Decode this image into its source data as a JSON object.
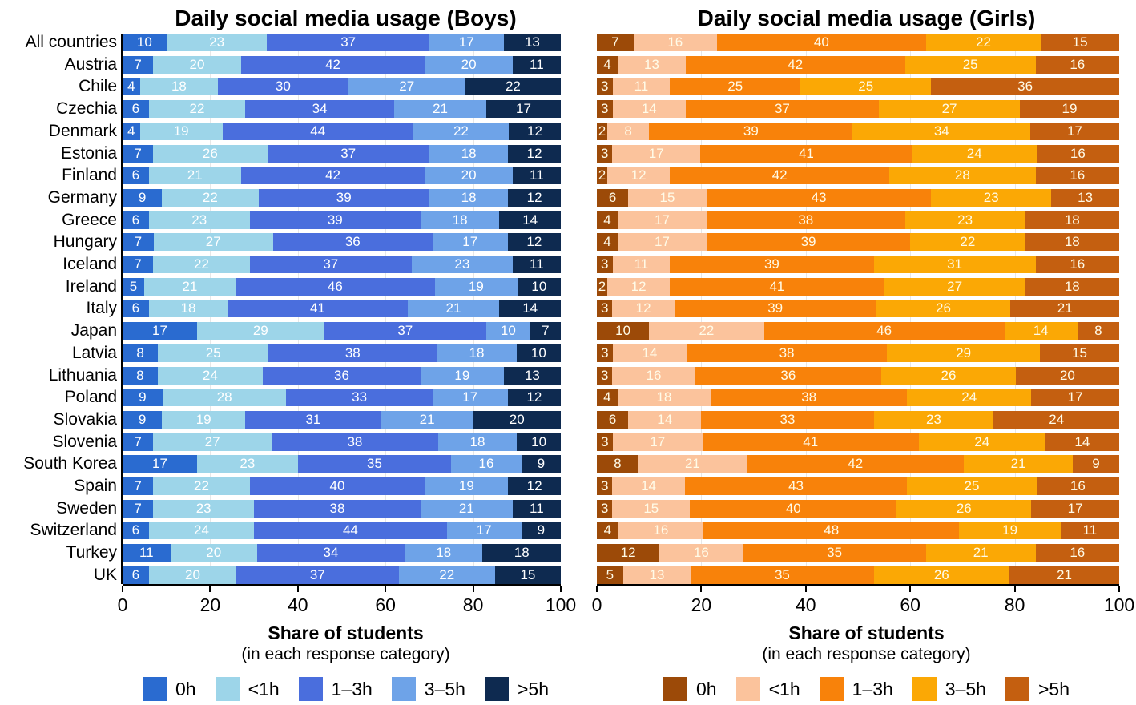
{
  "figure": {
    "xaxis_title": "Share of students",
    "xaxis_subtitle": "(in each response category)"
  },
  "chart_data": [
    {
      "type": "bar",
      "orientation": "horizontal",
      "stacked": true,
      "title": "Daily social media usage (Boys)",
      "xlabel": "Share of students (in each response category)",
      "xlim": [
        0,
        100
      ],
      "xticks": [
        0,
        20,
        40,
        60,
        80,
        100
      ],
      "grid": true,
      "legend_position": "bottom",
      "show_category_labels": true,
      "label_color": "#ffffff",
      "colors": [
        "#2a6bd0",
        "#9dd5e9",
        "#4a6edd",
        "#6ea3e8",
        "#0e2a50"
      ],
      "categories": [
        "All countries",
        "Austria",
        "Chile",
        "Czechia",
        "Denmark",
        "Estonia",
        "Finland",
        "Germany",
        "Greece",
        "Hungary",
        "Iceland",
        "Ireland",
        "Italy",
        "Japan",
        "Latvia",
        "Lithuania",
        "Poland",
        "Slovakia",
        "Slovenia",
        "South Korea",
        "Spain",
        "Sweden",
        "Switzerland",
        "Turkey",
        "UK"
      ],
      "series": [
        {
          "name": "0h",
          "values": [
            10,
            7,
            4,
            6,
            4,
            7,
            6,
            9,
            6,
            7,
            7,
            5,
            6,
            17,
            8,
            8,
            9,
            9,
            7,
            17,
            7,
            7,
            6,
            11,
            6
          ]
        },
        {
          "name": "<1h",
          "values": [
            23,
            20,
            18,
            22,
            19,
            26,
            21,
            22,
            23,
            27,
            22,
            21,
            18,
            29,
            25,
            24,
            28,
            19,
            27,
            23,
            22,
            23,
            24,
            20,
            20
          ]
        },
        {
          "name": "1–3h",
          "values": [
            37,
            42,
            30,
            34,
            44,
            37,
            42,
            39,
            39,
            36,
            37,
            46,
            41,
            37,
            38,
            36,
            33,
            31,
            38,
            35,
            40,
            38,
            44,
            34,
            37
          ]
        },
        {
          "name": "3–5h",
          "values": [
            17,
            20,
            27,
            21,
            22,
            18,
            20,
            18,
            18,
            17,
            23,
            19,
            21,
            10,
            18,
            19,
            17,
            21,
            18,
            16,
            19,
            21,
            17,
            18,
            22
          ]
        },
        {
          "name": ">5h",
          "values": [
            13,
            11,
            22,
            17,
            12,
            12,
            11,
            12,
            14,
            12,
            11,
            10,
            14,
            7,
            10,
            13,
            12,
            20,
            10,
            9,
            12,
            11,
            9,
            18,
            15
          ]
        }
      ]
    },
    {
      "type": "bar",
      "orientation": "horizontal",
      "stacked": true,
      "title": "Daily social media usage (Girls)",
      "xlabel": "Share of students (in each response category)",
      "xlim": [
        0,
        100
      ],
      "xticks": [
        0,
        20,
        40,
        60,
        80,
        100
      ],
      "grid": true,
      "legend_position": "bottom",
      "show_category_labels": false,
      "label_color": "#fffbe8",
      "colors": [
        "#9c4a08",
        "#fbc39c",
        "#f8820a",
        "#fba805",
        "#c45f10"
      ],
      "categories": [
        "All countries",
        "Austria",
        "Chile",
        "Czechia",
        "Denmark",
        "Estonia",
        "Finland",
        "Germany",
        "Greece",
        "Hungary",
        "Iceland",
        "Ireland",
        "Italy",
        "Japan",
        "Latvia",
        "Lithuania",
        "Poland",
        "Slovakia",
        "Slovenia",
        "South Korea",
        "Spain",
        "Sweden",
        "Switzerland",
        "Turkey",
        "UK"
      ],
      "series": [
        {
          "name": "0h",
          "values": [
            7,
            4,
            3,
            3,
            2,
            3,
            2,
            6,
            4,
            4,
            3,
            2,
            3,
            10,
            3,
            3,
            4,
            6,
            3,
            8,
            3,
            3,
            4,
            12,
            5
          ]
        },
        {
          "name": "<1h",
          "values": [
            16,
            13,
            11,
            14,
            8,
            17,
            12,
            15,
            17,
            17,
            11,
            12,
            12,
            22,
            14,
            16,
            18,
            14,
            17,
            21,
            14,
            15,
            16,
            16,
            13
          ]
        },
        {
          "name": "1–3h",
          "values": [
            40,
            42,
            25,
            37,
            39,
            41,
            42,
            43,
            38,
            39,
            39,
            41,
            39,
            46,
            38,
            36,
            38,
            33,
            41,
            42,
            43,
            40,
            48,
            35,
            35
          ]
        },
        {
          "name": "3–5h",
          "values": [
            22,
            25,
            25,
            27,
            34,
            24,
            28,
            23,
            23,
            22,
            31,
            27,
            26,
            14,
            29,
            26,
            24,
            23,
            24,
            21,
            25,
            26,
            19,
            21,
            26
          ]
        },
        {
          "name": ">5h",
          "values": [
            15,
            16,
            36,
            19,
            17,
            16,
            16,
            13,
            18,
            18,
            16,
            18,
            21,
            8,
            15,
            20,
            17,
            24,
            14,
            9,
            16,
            17,
            11,
            16,
            21
          ]
        }
      ]
    }
  ]
}
